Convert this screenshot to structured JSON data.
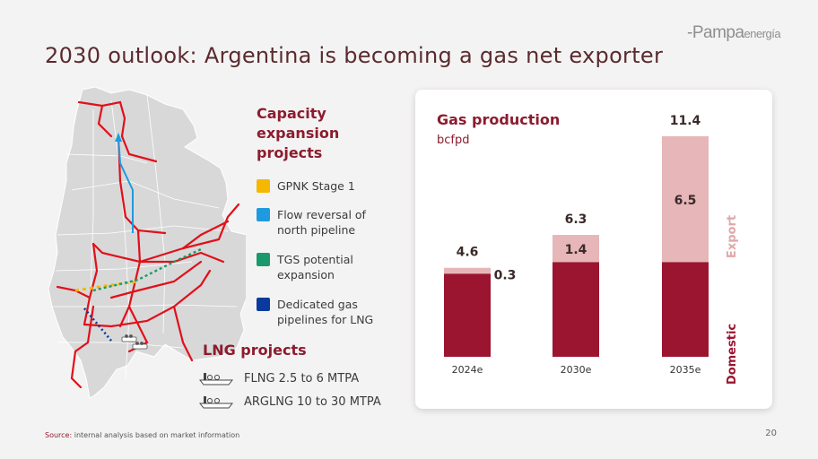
{
  "logo": {
    "main": "-Pampa",
    "suffix": "energía"
  },
  "title": "2030 outlook: Argentina is becoming a gas net exporter",
  "legend": {
    "title": "Capacity expansion projects",
    "items": [
      {
        "label": "GPNK Stage 1",
        "color": "#f5b800"
      },
      {
        "label": "Flow reversal of north pipeline",
        "color": "#1e9be0"
      },
      {
        "label": "TGS potential expansion",
        "color": "#1a9a6c"
      },
      {
        "label": "Dedicated gas pipelines for LNG",
        "color": "#0a3a9c"
      }
    ]
  },
  "lng": {
    "title": "LNG projects",
    "items": [
      {
        "label": "FLNG 2.5 to 6 MTPA",
        "icon": "lng-ship-icon"
      },
      {
        "label": "ARGLNG 10 to 30 MTPA",
        "icon": "lng-ship-icon"
      }
    ]
  },
  "chart_data": {
    "type": "bar",
    "title": "Gas production",
    "subtitle": "bcfpd",
    "categories": [
      "2024e",
      "2030e",
      "2035e"
    ],
    "totals": [
      4.6,
      6.3,
      11.4
    ],
    "series": [
      {
        "name": "Domestic",
        "values": [
          4.3,
          4.9,
          4.9
        ],
        "color": "#9b1530",
        "show_labels": false
      },
      {
        "name": "Export",
        "values": [
          0.3,
          1.4,
          6.5
        ],
        "color": "#e6b6b8",
        "show_labels": true
      }
    ],
    "ylim": [
      0,
      11.4
    ],
    "stacked": true,
    "grid": false,
    "legend": "right-vertical"
  },
  "footer": {
    "source_prefix": "Source:",
    "source_text": " internal analysis based on market information",
    "page": "20"
  }
}
